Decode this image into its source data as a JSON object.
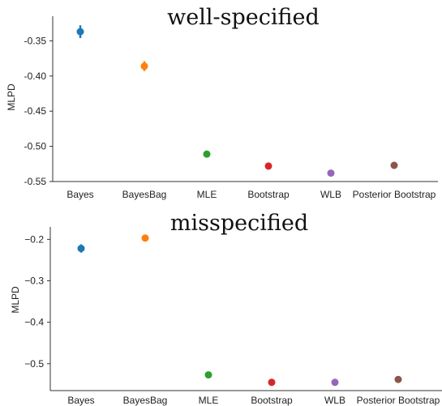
{
  "chart_data": [
    {
      "type": "scatter",
      "title": "well-specified",
      "ylabel": "MLPD",
      "xlabel": "",
      "categories": [
        "Bayes",
        "BayesBag",
        "MLE",
        "Bootstrap",
        "WLB",
        "Posterior Bootstrap"
      ],
      "colors": [
        "#1f77b4",
        "#ff7f0e",
        "#2ca02c",
        "#d62728",
        "#9467bd",
        "#8c564b"
      ],
      "values": [
        -0.337,
        -0.386,
        -0.511,
        -0.528,
        -0.538,
        -0.527
      ],
      "error": [
        0.009,
        0.007,
        0.004,
        0.005,
        0.003,
        0.003
      ],
      "yticks": [
        -0.35,
        -0.4,
        -0.45,
        -0.5,
        -0.55
      ],
      "ytick_labels": [
        "-0.35",
        "-0.40",
        "-0.45",
        "-0.50",
        "-0.55"
      ],
      "ylim": [
        -0.55,
        -0.315
      ],
      "grid": false
    },
    {
      "type": "scatter",
      "title": "misspecified",
      "ylabel": "MLPD",
      "xlabel": "",
      "categories": [
        "Bayes",
        "BayesBag",
        "MLE",
        "Bootstrap",
        "WLB",
        "Posterior Bootstrap"
      ],
      "colors": [
        "#1f77b4",
        "#ff7f0e",
        "#2ca02c",
        "#d62728",
        "#9467bd",
        "#8c564b"
      ],
      "values": [
        -0.222,
        -0.197,
        -0.527,
        -0.545,
        -0.545,
        -0.538
      ],
      "error": [
        0.01,
        0.008,
        0.003,
        0.003,
        0.003,
        0.003
      ],
      "yticks": [
        -0.2,
        -0.3,
        -0.4,
        -0.5
      ],
      "ytick_labels": [
        "−0.2",
        "−0.3",
        "−0.4",
        "−0.5"
      ],
      "ylim": [
        -0.565,
        -0.17
      ],
      "grid": false
    }
  ]
}
